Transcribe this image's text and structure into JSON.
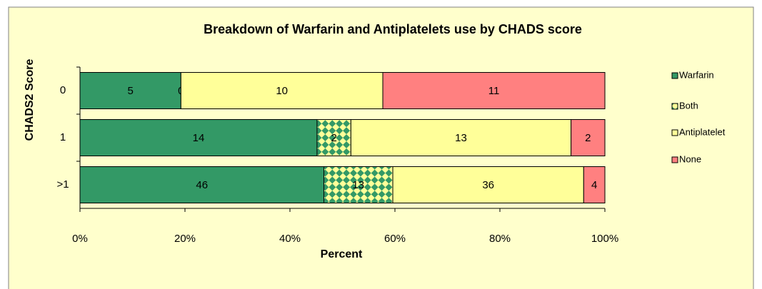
{
  "chart_data": {
    "type": "bar",
    "orientation": "horizontal",
    "stacking": "percent",
    "title": "Breakdown of Warfarin and Antiplatelets  use by CHADS score",
    "x_label": "Percent",
    "y_label": "CHADS2 Score",
    "categories": [
      "0",
      "1",
      ">1"
    ],
    "series": [
      {
        "name": "Warfarin",
        "color": "#339966",
        "values": [
          5,
          14,
          46
        ]
      },
      {
        "name": "Both",
        "color": "#339966",
        "pattern": "checker",
        "pattern_color": "#ffff99",
        "values": [
          0,
          2,
          13
        ]
      },
      {
        "name": "Antiplatelet",
        "color": "#ffff99",
        "values": [
          10,
          13,
          36
        ]
      },
      {
        "name": "None",
        "color": "#ff8080",
        "values": [
          11,
          2,
          4
        ]
      }
    ],
    "xlim": [
      0,
      100
    ],
    "xticks": [
      {
        "value": 0,
        "label": "0%"
      },
      {
        "value": 20,
        "label": "20%"
      },
      {
        "value": 40,
        "label": "40%"
      },
      {
        "value": 60,
        "label": "60%"
      },
      {
        "value": 80,
        "label": "80%"
      },
      {
        "value": 100,
        "label": "100%"
      }
    ],
    "legend": "right",
    "grid": false
  }
}
